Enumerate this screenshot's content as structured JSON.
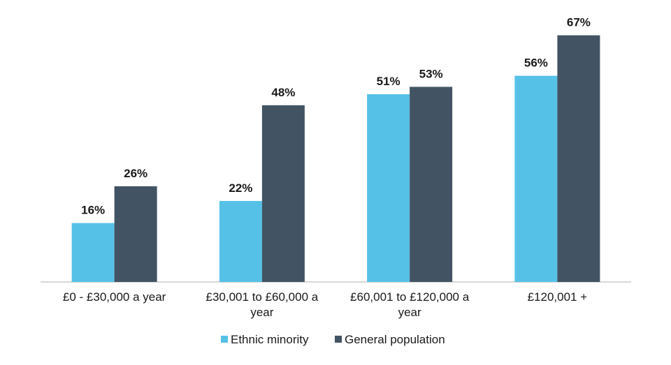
{
  "chart_data": {
    "type": "bar",
    "title": "",
    "xlabel": "",
    "ylabel": "",
    "ylim": [
      0,
      70
    ],
    "grid": false,
    "legend_position": "bottom",
    "categories": [
      [
        "£0 - £30,000 a year"
      ],
      [
        "£30,001 to £60,000 a",
        "year"
      ],
      [
        "£60,001 to £120,000 a",
        "year"
      ],
      [
        "£120,001 +"
      ]
    ],
    "series": [
      {
        "name": "Ethnic minority",
        "color": "#56C1E7",
        "values": [
          16,
          22,
          51,
          56
        ],
        "labels": [
          "16%",
          "22%",
          "51%",
          "56%"
        ]
      },
      {
        "name": "General population",
        "color": "#425463",
        "values": [
          26,
          48,
          53,
          67
        ],
        "labels": [
          "26%",
          "48%",
          "53%",
          "67%"
        ]
      }
    ]
  }
}
